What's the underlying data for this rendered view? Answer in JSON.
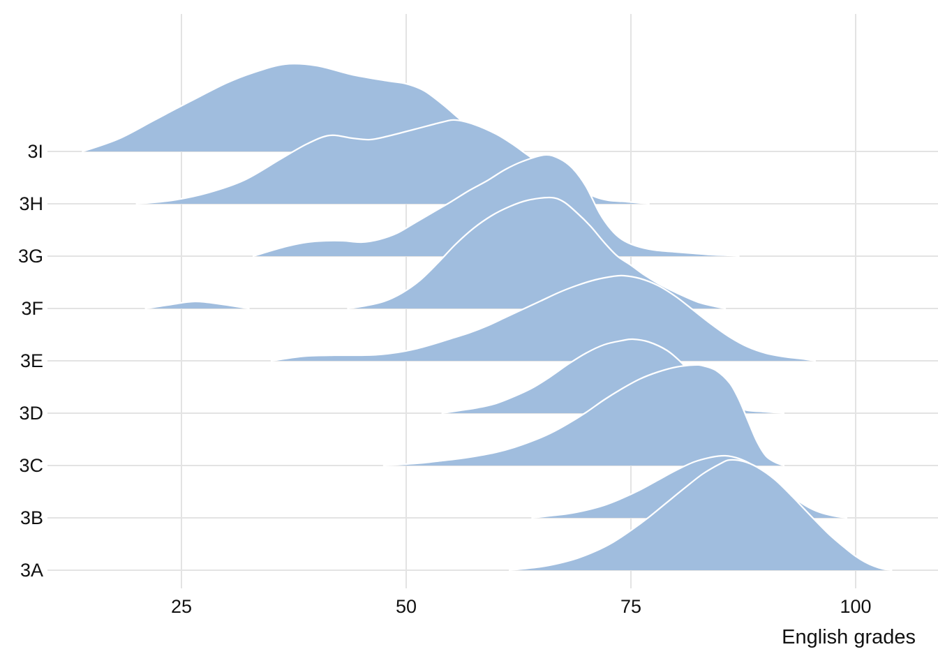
{
  "x_axis": {
    "label": "English grades",
    "tick_values": [
      25,
      50,
      75,
      100
    ],
    "tick_labels": [
      "25",
      "50",
      "75",
      "100"
    ]
  },
  "y_axis": {
    "categories_top_to_bottom": [
      "3I",
      "3H",
      "3G",
      "3F",
      "3E",
      "3D",
      "3C",
      "3B",
      "3A"
    ]
  },
  "style": {
    "ridge_fill": "#a0bdde",
    "ridge_stroke": "#ffffff",
    "grid_color": "#e3e3e3",
    "text_color": "#111111",
    "background": "#ffffff"
  },
  "chart_data": {
    "type": "area",
    "subtype": "ridgeline-density",
    "title": "",
    "xlabel": "English grades",
    "ylabel": "",
    "x_domain_shown": [
      5,
      109
    ],
    "x_ticks": [
      25,
      50,
      75,
      100
    ],
    "grid": "on",
    "legend": "none",
    "row_spacing_px": 75,
    "note": "Each series is a density ridge: points are [grade_value, ridge_height_px] above that class baseline; rows ordered top (3I, drawn furthest back) to bottom (3A, drawn in front).",
    "series": [
      {
        "name": "3I",
        "segments": [
          [
            [
              14,
              0
            ],
            [
              18,
              18
            ],
            [
              22,
              45
            ],
            [
              26,
              72
            ],
            [
              30,
              98
            ],
            [
              33,
              113
            ],
            [
              36.5,
              125
            ],
            [
              40,
              123
            ],
            [
              44,
              110
            ],
            [
              48,
              101
            ],
            [
              50,
              97
            ],
            [
              52,
              87
            ],
            [
              54,
              68
            ],
            [
              56,
              46
            ],
            [
              58,
              25
            ],
            [
              60,
              10
            ],
            [
              62,
              0
            ]
          ]
        ]
      },
      {
        "name": "3H",
        "segments": [
          [
            [
              20,
              0
            ],
            [
              24,
              5
            ],
            [
              28,
              16
            ],
            [
              32,
              34
            ],
            [
              36,
              64
            ],
            [
              39,
              86
            ],
            [
              41.5,
              98
            ],
            [
              44,
              94
            ],
            [
              46,
              92
            ],
            [
              48,
              97
            ],
            [
              51,
              107
            ],
            [
              54,
              117
            ],
            [
              55.5,
              120
            ],
            [
              57.5,
              114
            ],
            [
              60,
              100
            ],
            [
              62,
              84
            ],
            [
              63.5,
              70
            ],
            [
              65.5,
              52
            ],
            [
              67.5,
              36
            ],
            [
              69.5,
              20
            ],
            [
              71,
              10
            ],
            [
              72.5,
              5
            ],
            [
              74.5,
              3
            ],
            [
              77,
              0
            ]
          ]
        ]
      },
      {
        "name": "3G",
        "segments": [
          [
            [
              33,
              0
            ],
            [
              35,
              8
            ],
            [
              37,
              15
            ],
            [
              39,
              20
            ],
            [
              41,
              22
            ],
            [
              43,
              22
            ],
            [
              45,
              20
            ],
            [
              47,
              24
            ],
            [
              49,
              33
            ],
            [
              51,
              48
            ],
            [
              53,
              63
            ],
            [
              55,
              78
            ],
            [
              57,
              94
            ],
            [
              59,
              108
            ],
            [
              61,
              124
            ],
            [
              63,
              136
            ],
            [
              65.4,
              145
            ],
            [
              67,
              140
            ],
            [
              68.5,
              126
            ],
            [
              70,
              100
            ],
            [
              71.5,
              62
            ],
            [
              72.8,
              38
            ],
            [
              74,
              24
            ],
            [
              75.5,
              15
            ],
            [
              77.5,
              9
            ],
            [
              80,
              6
            ],
            [
              82,
              4
            ],
            [
              84,
              2
            ],
            [
              86,
              1
            ],
            [
              87,
              0
            ]
          ]
        ]
      },
      {
        "name": "3F",
        "segments": [
          [
            [
              21,
              0
            ],
            [
              23.5,
              5
            ],
            [
              26.5,
              10
            ],
            [
              29.5,
              6
            ],
            [
              32.5,
              0
            ]
          ],
          [
            [
              43.5,
              0
            ],
            [
              45.5,
              4
            ],
            [
              47.5,
              10
            ],
            [
              49.5,
              22
            ],
            [
              51.5,
              40
            ],
            [
              53.5,
              65
            ],
            [
              55.5,
              92
            ],
            [
              57.5,
              115
            ],
            [
              59.5,
              133
            ],
            [
              61.5,
              146
            ],
            [
              63.5,
              155
            ],
            [
              66,
              159
            ],
            [
              67.5,
              153
            ],
            [
              69,
              137
            ],
            [
              70.5,
              118
            ],
            [
              72,
              95
            ],
            [
              73.5,
              75
            ],
            [
              75,
              62
            ],
            [
              76.5,
              48
            ],
            [
              78,
              36
            ],
            [
              79.5,
              26
            ],
            [
              81,
              17
            ],
            [
              82.5,
              9
            ],
            [
              84,
              4
            ],
            [
              85.5,
              0
            ]
          ]
        ]
      },
      {
        "name": "3E",
        "segments": [
          [
            [
              35,
              0
            ],
            [
              37,
              4
            ],
            [
              39,
              7
            ],
            [
              42,
              8
            ],
            [
              45,
              8
            ],
            [
              47,
              9
            ],
            [
              49,
              12
            ],
            [
              51,
              17
            ],
            [
              53,
              24
            ],
            [
              55,
              32
            ],
            [
              57,
              40
            ],
            [
              59,
              50
            ],
            [
              61,
              62
            ],
            [
              63,
              74
            ],
            [
              65,
              86
            ],
            [
              67,
              98
            ],
            [
              69,
              108
            ],
            [
              71,
              116
            ],
            [
              73,
              121
            ],
            [
              74.2,
              122
            ],
            [
              76,
              118
            ],
            [
              78,
              108
            ],
            [
              80,
              92
            ],
            [
              82,
              72
            ],
            [
              84,
              52
            ],
            [
              86,
              34
            ],
            [
              88,
              20
            ],
            [
              90,
              11
            ],
            [
              92,
              6
            ],
            [
              94,
              3
            ],
            [
              95.5,
              0
            ]
          ]
        ]
      },
      {
        "name": "3D",
        "segments": [
          [
            [
              54,
              0
            ],
            [
              56,
              4
            ],
            [
              58,
              8
            ],
            [
              60,
              14
            ],
            [
              62,
              24
            ],
            [
              64,
              36
            ],
            [
              66,
              52
            ],
            [
              68,
              70
            ],
            [
              70,
              86
            ],
            [
              72,
              98
            ],
            [
              74,
              104
            ],
            [
              75.2,
              106
            ],
            [
              77,
              102
            ],
            [
              79,
              90
            ],
            [
              80.5,
              74
            ],
            [
              82,
              54
            ],
            [
              83.5,
              34
            ],
            [
              85,
              18
            ],
            [
              86.5,
              9
            ],
            [
              88,
              4
            ],
            [
              90,
              2
            ],
            [
              92,
              0
            ]
          ]
        ]
      },
      {
        "name": "3C",
        "segments": [
          [
            [
              47.5,
              0
            ],
            [
              50,
              2
            ],
            [
              52,
              4
            ],
            [
              54,
              7
            ],
            [
              56,
              10
            ],
            [
              58,
              14
            ],
            [
              60,
              19
            ],
            [
              62,
              26
            ],
            [
              64,
              35
            ],
            [
              66,
              46
            ],
            [
              68,
              60
            ],
            [
              70,
              76
            ],
            [
              72,
              94
            ],
            [
              74,
              110
            ],
            [
              76,
              124
            ],
            [
              78,
              134
            ],
            [
              80,
              141
            ],
            [
              82,
              144
            ],
            [
              83,
              143
            ],
            [
              84.5,
              136
            ],
            [
              86,
              118
            ],
            [
              87,
              95
            ],
            [
              88,
              65
            ],
            [
              89,
              35
            ],
            [
              90,
              14
            ],
            [
              91,
              5
            ],
            [
              92,
              0
            ]
          ]
        ]
      },
      {
        "name": "3B",
        "segments": [
          [
            [
              64,
              0
            ],
            [
              66,
              3
            ],
            [
              68,
              6
            ],
            [
              70,
              11
            ],
            [
              72,
              18
            ],
            [
              74,
              28
            ],
            [
              76,
              40
            ],
            [
              78,
              54
            ],
            [
              80,
              68
            ],
            [
              82,
              80
            ],
            [
              84,
              87
            ],
            [
              85.5,
              89
            ],
            [
              87,
              85
            ],
            [
              88.5,
              76
            ],
            [
              90,
              62
            ],
            [
              91.5,
              46
            ],
            [
              93,
              30
            ],
            [
              94.5,
              17
            ],
            [
              96,
              8
            ],
            [
              97.5,
              3
            ],
            [
              99,
              0
            ]
          ]
        ]
      },
      {
        "name": "3A",
        "segments": [
          [
            [
              61.5,
              0
            ],
            [
              63,
              2
            ],
            [
              65,
              5
            ],
            [
              67,
              10
            ],
            [
              69,
              17
            ],
            [
              71,
              27
            ],
            [
              73,
              40
            ],
            [
              75,
              57
            ],
            [
              77,
              76
            ],
            [
              79,
              97
            ],
            [
              81,
              118
            ],
            [
              83,
              138
            ],
            [
              85,
              153
            ],
            [
              86,
              158
            ],
            [
              87.5,
              156
            ],
            [
              89,
              148
            ],
            [
              91,
              130
            ],
            [
              93,
              105
            ],
            [
              95,
              78
            ],
            [
              97,
              52
            ],
            [
              99,
              30
            ],
            [
              100,
              20
            ],
            [
              101,
              12
            ],
            [
              102,
              6
            ],
            [
              103,
              2
            ],
            [
              104,
              0
            ]
          ]
        ]
      }
    ]
  }
}
